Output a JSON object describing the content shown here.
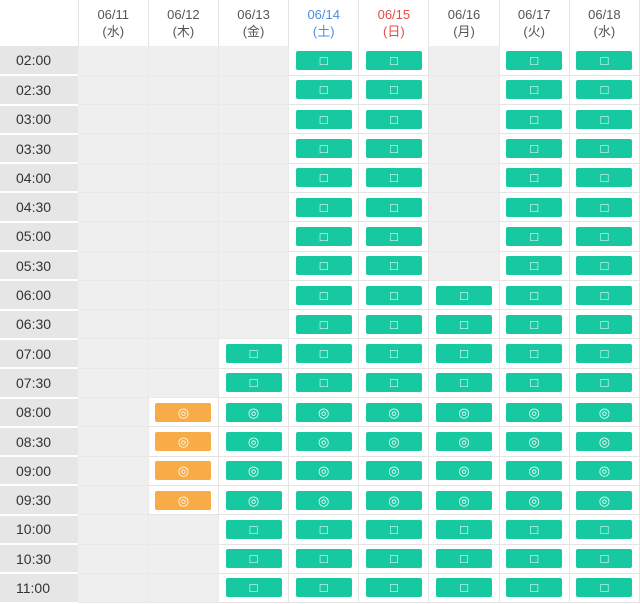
{
  "colors": {
    "available": "#17c9a0",
    "best": "#f7ac47",
    "unavailable": "#efefef",
    "time_cell": "#e6e6e6",
    "saturday": "#4a8ee0",
    "sunday": "#e34b4b"
  },
  "days": [
    {
      "date": "06/11",
      "weekday": "(水)",
      "kind": "weekday"
    },
    {
      "date": "06/12",
      "weekday": "(木)",
      "kind": "weekday"
    },
    {
      "date": "06/13",
      "weekday": "(金)",
      "kind": "weekday"
    },
    {
      "date": "06/14",
      "weekday": "(土)",
      "kind": "sat"
    },
    {
      "date": "06/15",
      "weekday": "(日)",
      "kind": "sun"
    },
    {
      "date": "06/16",
      "weekday": "(月)",
      "kind": "weekday"
    },
    {
      "date": "06/17",
      "weekday": "(火)",
      "kind": "weekday"
    },
    {
      "date": "06/18",
      "weekday": "(水)",
      "kind": "weekday"
    }
  ],
  "symbols": {
    "square": "□",
    "double_circle": "◎"
  },
  "slots": [
    {
      "time": "02:00",
      "cells": [
        "",
        "",
        "",
        "square",
        "square",
        "",
        "square",
        "square"
      ]
    },
    {
      "time": "02:30",
      "cells": [
        "",
        "",
        "",
        "square",
        "square",
        "",
        "square",
        "square"
      ]
    },
    {
      "time": "03:00",
      "cells": [
        "",
        "",
        "",
        "square",
        "square",
        "",
        "square",
        "square"
      ]
    },
    {
      "time": "03:30",
      "cells": [
        "",
        "",
        "",
        "square",
        "square",
        "",
        "square",
        "square"
      ]
    },
    {
      "time": "04:00",
      "cells": [
        "",
        "",
        "",
        "square",
        "square",
        "",
        "square",
        "square"
      ]
    },
    {
      "time": "04:30",
      "cells": [
        "",
        "",
        "",
        "square",
        "square",
        "",
        "square",
        "square"
      ]
    },
    {
      "time": "05:00",
      "cells": [
        "",
        "",
        "",
        "square",
        "square",
        "",
        "square",
        "square"
      ]
    },
    {
      "time": "05:30",
      "cells": [
        "",
        "",
        "",
        "square",
        "square",
        "",
        "square",
        "square"
      ]
    },
    {
      "time": "06:00",
      "cells": [
        "",
        "",
        "",
        "square",
        "square",
        "square",
        "square",
        "square"
      ]
    },
    {
      "time": "06:30",
      "cells": [
        "",
        "",
        "",
        "square",
        "square",
        "square",
        "square",
        "square"
      ]
    },
    {
      "time": "07:00",
      "cells": [
        "",
        "",
        "square",
        "square",
        "square",
        "square",
        "square",
        "square"
      ]
    },
    {
      "time": "07:30",
      "cells": [
        "",
        "",
        "square",
        "square",
        "square",
        "square",
        "square",
        "square"
      ]
    },
    {
      "time": "08:00",
      "cells": [
        "",
        "double_circle_orange",
        "double_circle",
        "double_circle",
        "double_circle",
        "double_circle",
        "double_circle",
        "double_circle"
      ]
    },
    {
      "time": "08:30",
      "cells": [
        "",
        "double_circle_orange",
        "double_circle",
        "double_circle",
        "double_circle",
        "double_circle",
        "double_circle",
        "double_circle"
      ]
    },
    {
      "time": "09:00",
      "cells": [
        "",
        "double_circle_orange",
        "double_circle",
        "double_circle",
        "double_circle",
        "double_circle",
        "double_circle",
        "double_circle"
      ]
    },
    {
      "time": "09:30",
      "cells": [
        "",
        "double_circle_orange",
        "double_circle",
        "double_circle",
        "double_circle",
        "double_circle",
        "double_circle",
        "double_circle"
      ]
    },
    {
      "time": "10:00",
      "cells": [
        "",
        "",
        "square",
        "square",
        "square",
        "square",
        "square",
        "square"
      ]
    },
    {
      "time": "10:30",
      "cells": [
        "",
        "",
        "square",
        "square",
        "square",
        "square",
        "square",
        "square"
      ]
    },
    {
      "time": "11:00",
      "cells": [
        "",
        "",
        "square",
        "square",
        "square",
        "square",
        "square",
        "square"
      ]
    }
  ]
}
